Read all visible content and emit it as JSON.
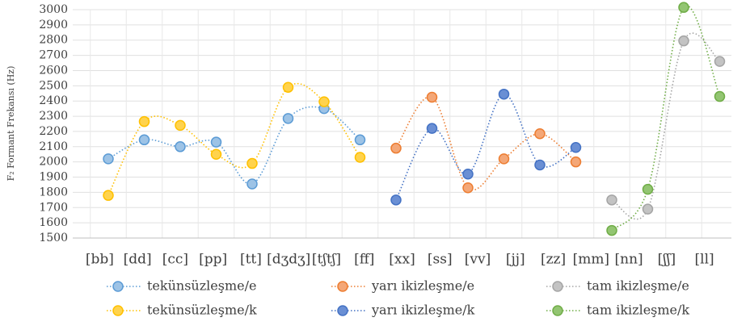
{
  "chart_data": {
    "type": "line",
    "y_label": "F₂ Formant Frekansı (Hz)",
    "categories": [
      null,
      "[bb]",
      "[dd]",
      "[cc]",
      "[pp]",
      "[tt]",
      "[dʒdʒ]",
      "[tʃtʃ]",
      "[ff]",
      "[xx]",
      "[ss]",
      "[vv]",
      "[jj]",
      "[zz]",
      "[mm]",
      "[nn]",
      "[ʃʃ]",
      "[ll]"
    ],
    "series": [
      {
        "name": "tekünsüzleşme/e",
        "color": "#5b9bd5",
        "fill": "#9dc3e6",
        "values": [
          2020,
          2145,
          2100,
          2130,
          1855,
          2285,
          2350,
          2145,
          null,
          null,
          null,
          null,
          null,
          null,
          null,
          null,
          null,
          null
        ]
      },
      {
        "name": "tekünsüzleşme/k",
        "color": "#ffc000",
        "fill": "#ffd34d",
        "values": [
          1780,
          2265,
          2240,
          2050,
          1990,
          2490,
          2395,
          2030,
          null,
          null,
          null,
          null,
          null,
          null,
          null,
          null,
          null,
          null
        ]
      },
      {
        "name": "yarı ikizleşme/e",
        "color": "#ed7d31",
        "fill": "#f4a777",
        "values": [
          null,
          null,
          null,
          null,
          null,
          null,
          null,
          null,
          2090,
          2425,
          1830,
          2020,
          2185,
          2000,
          null,
          null,
          null,
          null
        ]
      },
      {
        "name": "yarı ikizleşme/k",
        "color": "#4472c4",
        "fill": "#6a8fd4",
        "values": [
          null,
          null,
          null,
          null,
          null,
          null,
          null,
          null,
          1750,
          2220,
          1920,
          2445,
          1980,
          2095,
          null,
          null,
          null,
          null
        ]
      },
      {
        "name": "tam ikizleşme/e",
        "color": "#a5a5a5",
        "fill": "#c3c3c3",
        "values": [
          null,
          null,
          null,
          null,
          null,
          null,
          null,
          null,
          null,
          null,
          null,
          null,
          null,
          null,
          1750,
          1690,
          2795,
          2660
        ]
      },
      {
        "name": "tam ikizleşme/k",
        "color": "#70ad47",
        "fill": "#93c572",
        "values": [
          null,
          null,
          null,
          null,
          null,
          null,
          null,
          null,
          null,
          null,
          null,
          null,
          null,
          null,
          1550,
          1820,
          3015,
          2430
        ]
      }
    ],
    "ylim": [
      1500,
      3000
    ],
    "yticks": [
      1500,
      1600,
      1700,
      1800,
      1900,
      2000,
      2100,
      2200,
      2300,
      2400,
      2500,
      2600,
      2700,
      2800,
      2900,
      3000
    ],
    "grid": true
  }
}
